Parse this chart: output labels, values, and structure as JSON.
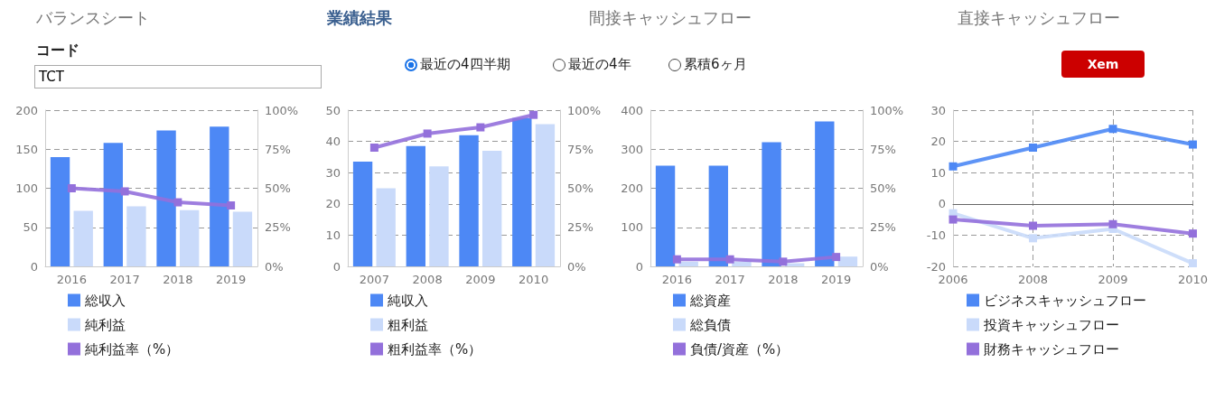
{
  "chart_data": [
    {
      "type": "other",
      "annotations": [
        "バランスシート",
        "業績結果",
        "間接キャッシュフロー",
        "直接キャッシュフロー",
        "コード",
        "TCT",
        "最近の4四半期",
        "最近の4年",
        "累積6ヶ月",
        "Xem"
      ]
    },
    {
      "type": "bar",
      "categories": [
        "2016",
        "2017",
        "2018",
        "2019"
      ],
      "ylim": [
        0,
        200
      ],
      "yticks": [
        0,
        50,
        100,
        150,
        200
      ],
      "y2lim": [
        0,
        100
      ],
      "y2ticks": [
        {
          "value": 0,
          "label": "0%"
        },
        {
          "value": 25,
          "label": "25%"
        },
        {
          "value": 50,
          "label": "50%"
        },
        {
          "value": 75,
          "label": "75%"
        },
        {
          "value": 100,
          "label": "100%"
        }
      ],
      "grid": "y",
      "legend": "bottom",
      "marker": "square",
      "series": [
        {
          "name": "総収入",
          "color": "#4d88f5",
          "values": [
            140,
            158,
            174,
            179
          ]
        },
        {
          "name": "純利益",
          "color": "#c9dafa",
          "values": [
            71,
            77,
            72,
            70
          ]
        },
        {
          "name": "純利益率（%）",
          "color": "#9370db",
          "type": "line",
          "axis": "y2",
          "values": [
            50,
            48,
            41,
            39
          ]
        }
      ]
    },
    {
      "type": "bar",
      "categories": [
        "2007",
        "2008",
        "2009",
        "2010"
      ],
      "ylim": [
        0,
        50
      ],
      "yticks": [
        0,
        10,
        20,
        30,
        40,
        50
      ],
      "y2lim": [
        0,
        100
      ],
      "y2ticks": [
        {
          "value": 0,
          "label": "0%"
        },
        {
          "value": 25,
          "label": "25%"
        },
        {
          "value": 50,
          "label": "50%"
        },
        {
          "value": 75,
          "label": "75%"
        },
        {
          "value": 100,
          "label": "100%"
        }
      ],
      "grid": "y",
      "legend": "bottom",
      "marker": "square",
      "series": [
        {
          "name": "純収入",
          "color": "#4d88f5",
          "values": [
            33.5,
            38.5,
            42,
            47.5
          ]
        },
        {
          "name": "粗利益",
          "color": "#c9dafa",
          "values": [
            25,
            32,
            37,
            45.5
          ]
        },
        {
          "name": "粗利益率（%）",
          "color": "#9370db",
          "type": "line",
          "axis": "y2",
          "values": [
            76,
            85,
            89,
            97
          ]
        }
      ]
    },
    {
      "type": "bar",
      "categories": [
        "2016",
        "2017",
        "2018",
        "2019"
      ],
      "ylim": [
        0,
        400
      ],
      "yticks": [
        0,
        100,
        200,
        300,
        400
      ],
      "y2lim": [
        0,
        100
      ],
      "y2ticks": [
        {
          "value": 0,
          "label": "0%"
        },
        {
          "value": 25,
          "label": "25%"
        },
        {
          "value": 50,
          "label": "50%"
        },
        {
          "value": 75,
          "label": "75%"
        },
        {
          "value": 100,
          "label": "100%"
        }
      ],
      "grid": "y",
      "legend": "bottom",
      "marker": "square",
      "series": [
        {
          "name": "総資産",
          "color": "#4d88f5",
          "values": [
            258,
            258,
            318,
            371
          ]
        },
        {
          "name": "総負債",
          "color": "#c9dafa",
          "values": [
            12,
            12,
            8,
            25
          ]
        },
        {
          "name": "負債/資産（%）",
          "color": "#9370db",
          "type": "line",
          "axis": "y2",
          "values": [
            4.5,
            4.5,
            3,
            6
          ]
        }
      ]
    },
    {
      "type": "line",
      "categories": [
        "2006",
        "2008",
        "2009",
        "2010"
      ],
      "ylim": [
        -20,
        30
      ],
      "yticks": [
        -20,
        -10,
        0,
        10,
        20,
        30
      ],
      "grid": true,
      "legend": "bottom",
      "marker": "square",
      "series": [
        {
          "name": "ビジネスキャッシュフロー",
          "color": "#4d88f5",
          "values": [
            12,
            18,
            24,
            19
          ]
        },
        {
          "name": "投資キャッシュフロー",
          "color": "#c9dafa",
          "values": [
            -3,
            -11,
            -8,
            -19
          ]
        },
        {
          "name": "財務キャッシュフロー",
          "color": "#9370db",
          "values": [
            -5,
            -7,
            -6.5,
            -9.5
          ]
        }
      ]
    }
  ]
}
